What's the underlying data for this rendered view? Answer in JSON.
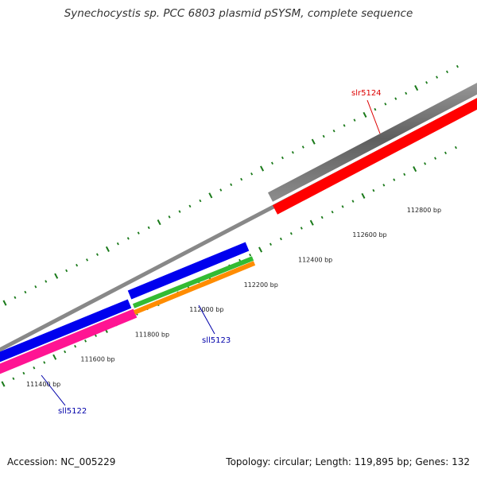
{
  "title": "Synechocystis sp. PCC 6803 plasmid pSYSM, complete sequence",
  "footer": {
    "accession": "Accession: NC_005229",
    "topology": "Topology: circular; Length: 119,895 bp; Genes: 132"
  },
  "colors": {
    "backbone": "#888888",
    "tick": "#1a7a1a",
    "gene_grey": "#666666",
    "gene_red": "#ff0000",
    "gene_blue": "#0000ee",
    "gene_pink": "#ff1493",
    "gene_green": "#33bb33",
    "gene_orange": "#ff8c00",
    "label_forward": "#dd0000",
    "label_reverse": "#0000aa"
  },
  "ticks": [
    {
      "label": "111400 bp"
    },
    {
      "label": "111600 bp"
    },
    {
      "label": "111800 bp"
    },
    {
      "label": "112000 bp"
    },
    {
      "label": "112200 bp"
    },
    {
      "label": "112400 bp"
    },
    {
      "label": "112600 bp"
    },
    {
      "label": "112800 bp"
    }
  ],
  "genes": [
    {
      "name": "slr5124",
      "strand": "forward",
      "color": "gene_red"
    },
    {
      "name": "sll5123",
      "strand": "reverse",
      "color": "gene_green"
    },
    {
      "name": "sll5122",
      "strand": "reverse",
      "color": "gene_pink"
    }
  ]
}
